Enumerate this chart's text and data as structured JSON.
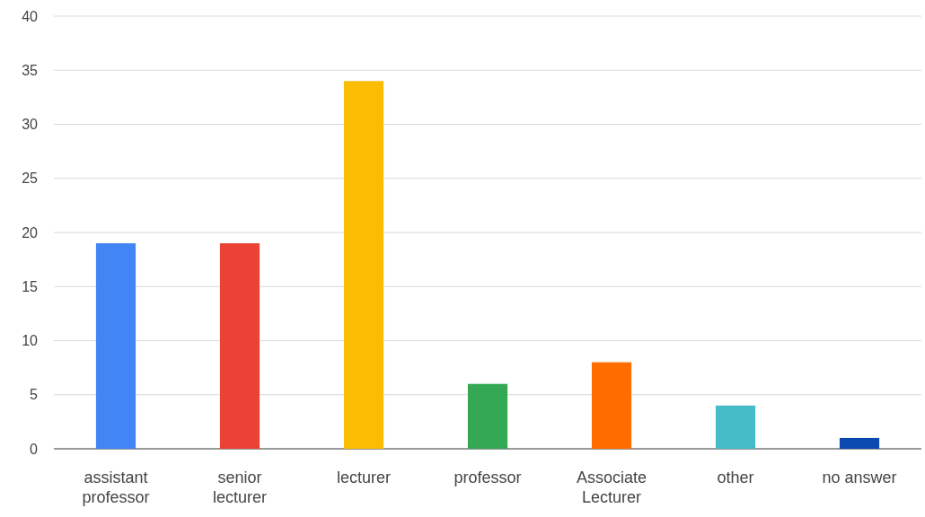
{
  "chart_data": {
    "type": "bar",
    "categories": [
      "assistant professor",
      "senior lecturer",
      "lecturer",
      "professor",
      "Associate Lecturer",
      "other",
      "no answer"
    ],
    "values": [
      19,
      19,
      34,
      6,
      8,
      4,
      1
    ],
    "colors": [
      "#4285f4",
      "#ea4335",
      "#fbbc04",
      "#34a853",
      "#ff6d01",
      "#46bdc6",
      "#0b49b1"
    ],
    "ylim": [
      0,
      40
    ],
    "yticks": [
      0,
      5,
      10,
      15,
      20,
      25,
      30,
      35,
      40
    ],
    "grid": "y"
  }
}
